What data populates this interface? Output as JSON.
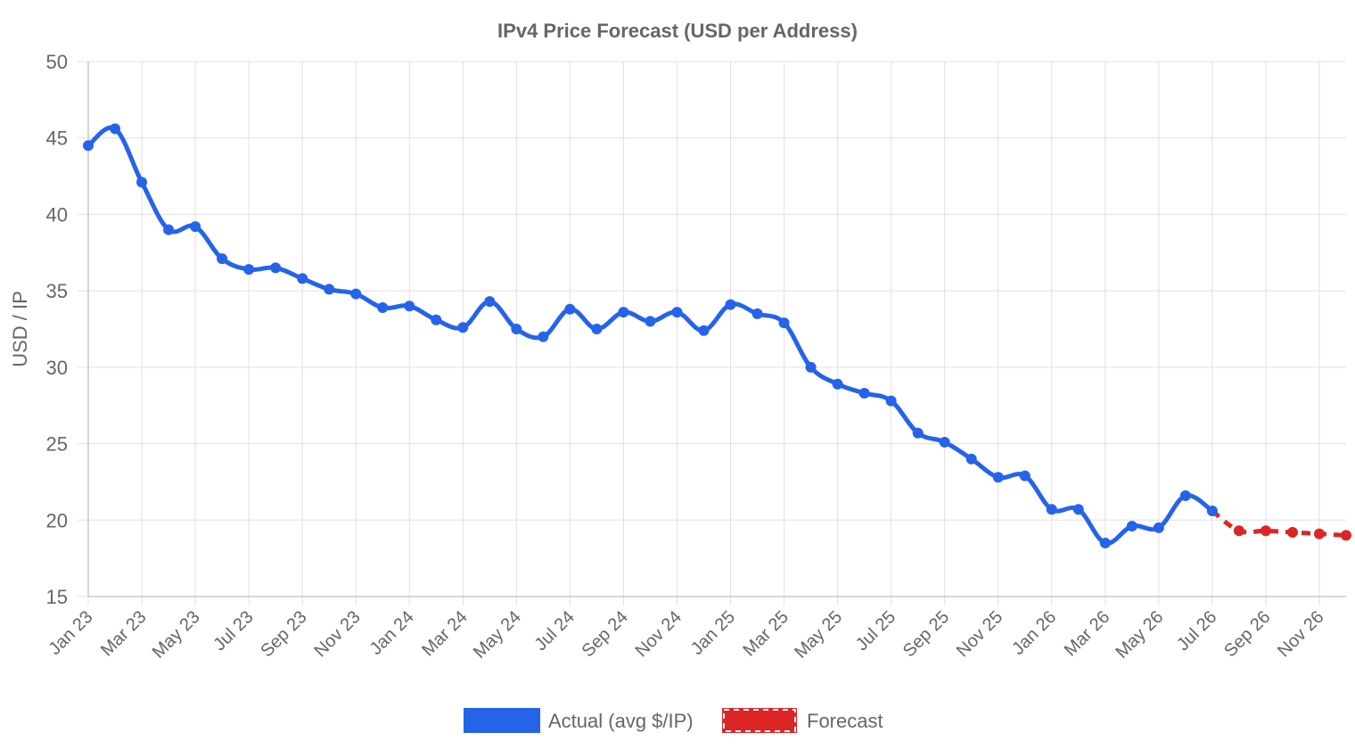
{
  "chart_data": {
    "type": "line",
    "title": "IPv4 Price Forecast (USD per Address)",
    "ylabel": "USD / IP",
    "xlabel": "",
    "ylim": [
      15,
      50
    ],
    "yticks": [
      15,
      20,
      25,
      30,
      35,
      40,
      45,
      50
    ],
    "grid": true,
    "legend_position": "bottom",
    "x_tick_labels": [
      "Jan 23",
      "Mar 23",
      "May 23",
      "Jul 23",
      "Sep 23",
      "Nov 23",
      "Jan 24",
      "Mar 24",
      "May 24",
      "Jul 24",
      "Sep 24",
      "Nov 24",
      "Jan 25",
      "Mar 25",
      "May 25",
      "Jul 25",
      "Sep 25",
      "Nov 25",
      "Jan 26",
      "Mar 26",
      "May 26",
      "Jul 26",
      "Sep 26",
      "Nov 26"
    ],
    "x": [
      "Jan 23",
      "Feb 23",
      "Mar 23",
      "Apr 23",
      "May 23",
      "Jun 23",
      "Jul 23",
      "Aug 23",
      "Sep 23",
      "Oct 23",
      "Nov 23",
      "Dec 23",
      "Jan 24",
      "Feb 24",
      "Mar 24",
      "Apr 24",
      "May 24",
      "Jun 24",
      "Jul 24",
      "Aug 24",
      "Sep 24",
      "Oct 24",
      "Nov 24",
      "Dec 24",
      "Jan 25",
      "Feb 25",
      "Mar 25",
      "Apr 25",
      "May 25",
      "Jun 25",
      "Jul 25",
      "Aug 25",
      "Sep 25",
      "Oct 25",
      "Nov 25",
      "Dec 25",
      "Jan 26",
      "Feb 26",
      "Mar 26",
      "Apr 26",
      "May 26",
      "Jun 26",
      "Jul 26",
      "Aug 26",
      "Sep 26",
      "Oct 26",
      "Nov 26",
      "Dec 26"
    ],
    "series": [
      {
        "name": "Actual (avg $/IP)",
        "color": "#2563eb",
        "style": "solid",
        "values": [
          44.5,
          45.6,
          42.1,
          39.0,
          39.2,
          37.1,
          36.4,
          36.5,
          35.8,
          35.1,
          34.8,
          33.9,
          34.0,
          33.1,
          32.6,
          34.3,
          32.5,
          32.0,
          33.8,
          32.5,
          33.6,
          33.0,
          33.6,
          32.4,
          34.1,
          33.5,
          32.9,
          30.0,
          28.9,
          28.3,
          27.8,
          25.7,
          25.1,
          24.0,
          22.8,
          22.9,
          20.7,
          20.7,
          18.5,
          19.6,
          19.5,
          21.6,
          20.6,
          null,
          null,
          null,
          null,
          null
        ]
      },
      {
        "name": "Forecast",
        "color": "#dc2626",
        "style": "dashed",
        "values": [
          null,
          null,
          null,
          null,
          null,
          null,
          null,
          null,
          null,
          null,
          null,
          null,
          null,
          null,
          null,
          null,
          null,
          null,
          null,
          null,
          null,
          null,
          null,
          null,
          null,
          null,
          null,
          null,
          null,
          null,
          null,
          null,
          null,
          null,
          null,
          null,
          null,
          null,
          null,
          null,
          null,
          null,
          20.6,
          19.3,
          19.3,
          19.2,
          19.1,
          19.0
        ]
      }
    ]
  }
}
